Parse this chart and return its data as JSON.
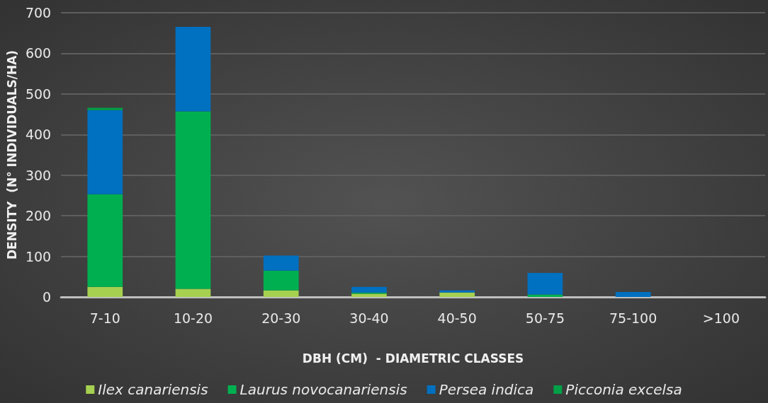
{
  "chart_data": {
    "type": "bar",
    "stacked": true,
    "xlabel": "DBH (CM)  - DIAMETRIC CLASSES",
    "ylabel": "DENSITY  (N° INDIVIDUALS/HA)",
    "categories": [
      "7-10",
      "10-20",
      "20-30",
      "30-40",
      "40-50",
      "50-75",
      "75-100",
      ">100"
    ],
    "series": [
      {
        "name": "Ilex canariensis",
        "color": "#a6d04f",
        "values": [
          25,
          20,
          16,
          8,
          11,
          0,
          0,
          0
        ]
      },
      {
        "name": "Laurus novocanariensis",
        "color": "#00b050",
        "values": [
          228,
          437,
          49,
          3,
          0,
          6,
          0,
          0
        ]
      },
      {
        "name": "Persea indica",
        "color": "#0070c0",
        "values": [
          207,
          208,
          37,
          14,
          5,
          53,
          12,
          0
        ]
      },
      {
        "name": "Picconia excelsa",
        "color": "#00a046",
        "values": [
          6,
          0,
          0,
          0,
          0,
          0,
          0,
          0
        ]
      }
    ],
    "ylim": [
      0,
      700
    ],
    "yticks": [
      0,
      100,
      200,
      300,
      400,
      500,
      600,
      700
    ],
    "grid": "y",
    "legend": "bottom"
  }
}
